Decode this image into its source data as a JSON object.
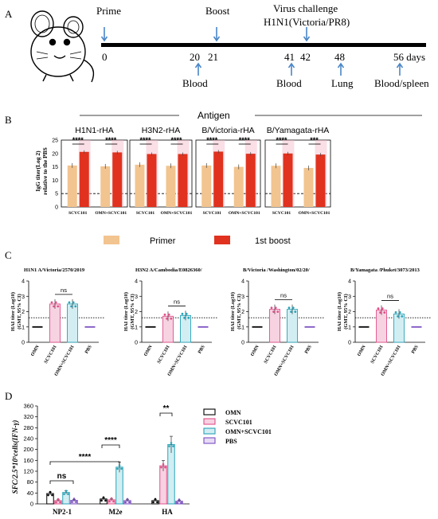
{
  "colors": {
    "blue_arrow": "#4a86c8",
    "primer": "#f2c48f",
    "boost": "#e0321f",
    "boost_band": "#f5b7c8",
    "omn": "#000000",
    "scvc101": "#e0508a",
    "omn_scvc101": "#29a3b8",
    "pbs": "#7b4fc0"
  },
  "panel_a": {
    "label": "A",
    "events": {
      "prime": "Prime",
      "boost": "Boost",
      "virus_challenge": "Virus challenge",
      "strain": "H1N1(Victoria/PR8)"
    },
    "ticks": [
      "0",
      "20",
      "21",
      "41",
      "42",
      "48",
      "56 days"
    ],
    "samples": [
      "Blood",
      "Blood",
      "Lung",
      "Blood/spleen"
    ]
  },
  "panel_b": {
    "label": "B",
    "antigen_header": "Antigen",
    "ylabel_line1": "IgG titer(Log 2)",
    "ylabel_line2": "relative to the PBS",
    "yticks": [
      "25",
      "20",
      "15",
      "10",
      "5",
      "0"
    ],
    "legend": {
      "primer": "Primer",
      "boost": "1st boost"
    },
    "groups": [
      "SCVC101",
      "OMN+SCVC101"
    ],
    "chart_data": {
      "type": "bar",
      "ylim": [
        0,
        25
      ],
      "dashed_line": 5,
      "panels": [
        {
          "title": "H1N1-rHA",
          "primer": [
            15.5,
            15.2
          ],
          "boost": [
            20.6,
            20.4
          ],
          "sig": [
            "****",
            "****"
          ]
        },
        {
          "title": "H3N2-rHA",
          "primer": [
            15.8,
            15.4
          ],
          "boost": [
            19.8,
            19.8
          ],
          "sig": [
            "****",
            "****"
          ]
        },
        {
          "title": "B/Victoria-rHA",
          "primer": [
            15.5,
            15.0
          ],
          "boost": [
            20.7,
            19.9
          ],
          "sig": [
            "****",
            "****"
          ]
        },
        {
          "title": "B/Yamagata-rHA",
          "primer": [
            15.4,
            14.6
          ],
          "boost": [
            20.0,
            19.6
          ],
          "sig": [
            "****",
            "***"
          ]
        }
      ]
    }
  },
  "panel_c": {
    "label": "C",
    "ylabel_line1": "HAI titer (Log10)",
    "ylabel_line2": "(GMT, 95% CI)",
    "yticks": [
      "4",
      "3",
      "2",
      "1",
      "0"
    ],
    "categories": [
      "OMN",
      "SCVC101",
      "OMN+SCVC101",
      "PBS"
    ],
    "chart_data": {
      "type": "bar",
      "ylim": [
        0,
        4
      ],
      "dotted_line": 1.6,
      "panels": [
        {
          "title": "H1N1 A/Victoria/2570/2019",
          "values": [
            1.0,
            2.5,
            2.5,
            1.0
          ],
          "sig": "ns"
        },
        {
          "title": "H3N2 A/Cambodia/E0826360/",
          "values": [
            1.0,
            1.7,
            1.75,
            1.0
          ],
          "sig": "ns"
        },
        {
          "title": "B/Victoria /Washington/02/20/",
          "values": [
            1.0,
            2.15,
            2.15,
            1.0
          ],
          "sig": "ns"
        },
        {
          "title": "B/Yamagata /Phuket/3073/2013",
          "values": [
            1.0,
            2.1,
            1.85,
            1.0
          ],
          "sig": "ns"
        }
      ]
    }
  },
  "panel_d": {
    "label": "D",
    "ylabel": "SFC/2.5*10⁵cells(IFN-γ)",
    "yticks": [
      "360",
      "320",
      "280",
      "240",
      "200",
      "160",
      "120",
      "80",
      "40",
      "0"
    ],
    "chart_data": {
      "type": "bar",
      "ylim": [
        0,
        360
      ],
      "categories": [
        "NP2-1",
        "M2e",
        "HA"
      ],
      "series": [
        {
          "name": "OMN",
          "values": [
            38,
            18,
            12
          ]
        },
        {
          "name": "SCVC101",
          "values": [
            12,
            15,
            140
          ]
        },
        {
          "name": "OMN+SCVC101",
          "values": [
            42,
            135,
            218
          ]
        },
        {
          "name": "PBS",
          "values": [
            13,
            12,
            10
          ]
        }
      ],
      "annotations": [
        "ns",
        "****",
        "****",
        "**"
      ]
    }
  }
}
